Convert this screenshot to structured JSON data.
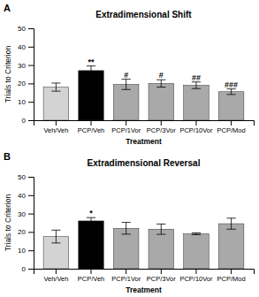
{
  "chart_data": [
    {
      "type": "bar",
      "panel_label": "A",
      "title": "Extradimensional Shift",
      "xlabel": "Treatment",
      "ylabel": "Trials to Criterion",
      "categories": [
        "Veh/Veh",
        "PCP/Veh",
        "PCP/1Vor",
        "PCP/3Vor",
        "PCP/10Vor",
        "PCP/Mod"
      ],
      "values": [
        18.0,
        27.0,
        19.5,
        20.0,
        19.0,
        15.5
      ],
      "errors": [
        2.2,
        2.5,
        2.8,
        2.0,
        1.8,
        1.5
      ],
      "colors": [
        "#d3d3d3",
        "#000000",
        "#a9a9a9",
        "#a9a9a9",
        "#a9a9a9",
        "#a9a9a9"
      ],
      "annotations": [
        null,
        "**",
        "#",
        "#",
        "##",
        "###"
      ],
      "ylim": [
        0,
        50
      ],
      "yticks": [
        0,
        10,
        20,
        30,
        40,
        50
      ]
    },
    {
      "type": "bar",
      "panel_label": "B",
      "title": "Extradimensional Reversal",
      "xlabel": "Treatment",
      "ylabel": "Trials to Criterion",
      "categories": [
        "Veh/Veh",
        "PCP/Veh",
        "PCP/1Vor",
        "PCP/3Vor",
        "PCP/10Vor",
        "PCP/Mod"
      ],
      "values": [
        17.5,
        26.0,
        22.0,
        21.5,
        19.0,
        24.5
      ],
      "errors": [
        3.5,
        1.8,
        3.2,
        2.8,
        0.5,
        3.0
      ],
      "colors": [
        "#d3d3d3",
        "#000000",
        "#a9a9a9",
        "#a9a9a9",
        "#a9a9a9",
        "#a9a9a9"
      ],
      "annotations": [
        null,
        "*",
        null,
        null,
        null,
        null
      ],
      "ylim": [
        0,
        50
      ],
      "yticks": [
        0,
        10,
        20,
        30,
        40,
        50
      ]
    }
  ]
}
